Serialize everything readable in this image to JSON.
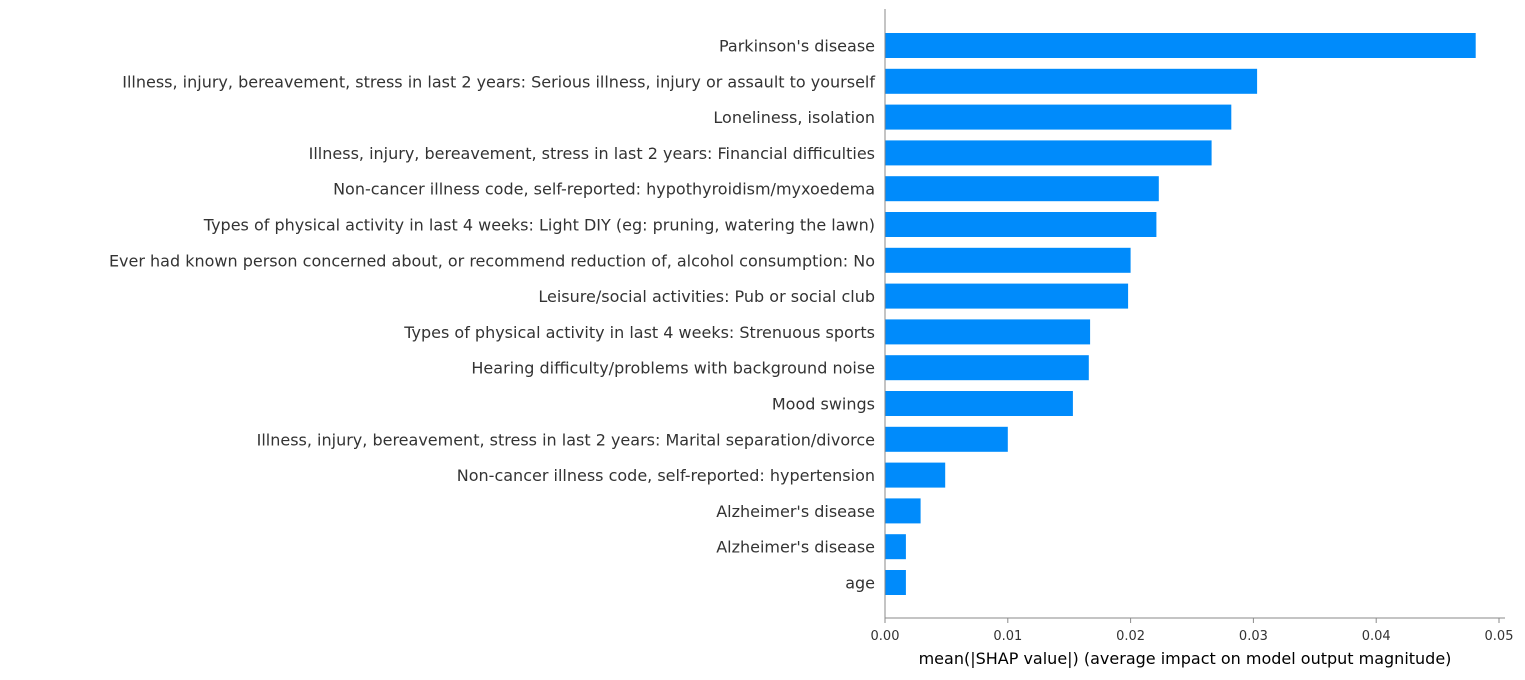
{
  "chart_data": {
    "type": "bar",
    "orientation": "horizontal",
    "title": "",
    "xlabel": "mean(|SHAP value|) (average impact on model output magnitude)",
    "ylabel": "",
    "xlim": [
      0,
      0.05
    ],
    "x_ticks": [
      "0.00",
      "0.01",
      "0.02",
      "0.03",
      "0.04",
      "0.05"
    ],
    "x_tick_values": [
      0,
      0.01,
      0.02,
      0.03,
      0.04,
      0.05
    ],
    "grid": false,
    "bar_color": "#008bfb",
    "categories": [
      "Parkinson's disease",
      "Illness, injury, bereavement, stress in last 2 years: Serious illness, injury or assault to yourself",
      "Loneliness, isolation",
      "Illness, injury, bereavement, stress in last 2 years: Financial difficulties",
      "Non-cancer illness code, self-reported: hypothyroidism/myxoedema",
      "Types of physical activity in last 4 weeks: Light DIY (eg: pruning, watering the lawn)",
      "Ever had known person concerned about, or recommend reduction of, alcohol consumption: No",
      "Leisure/social activities: Pub or social club",
      "Types of physical activity in last 4 weeks: Strenuous sports",
      "Hearing difficulty/problems with background noise",
      "Mood swings",
      "Illness, injury, bereavement, stress in last 2 years: Marital separation/divorce",
      "Non-cancer illness code, self-reported: hypertension",
      "Alzheimer's disease",
      "Alzheimer's disease",
      "age"
    ],
    "values": [
      0.0481,
      0.0303,
      0.0282,
      0.0266,
      0.0223,
      0.0221,
      0.02,
      0.0198,
      0.0167,
      0.0166,
      0.0153,
      0.01,
      0.0049,
      0.0029,
      0.0017,
      0.0017
    ]
  }
}
